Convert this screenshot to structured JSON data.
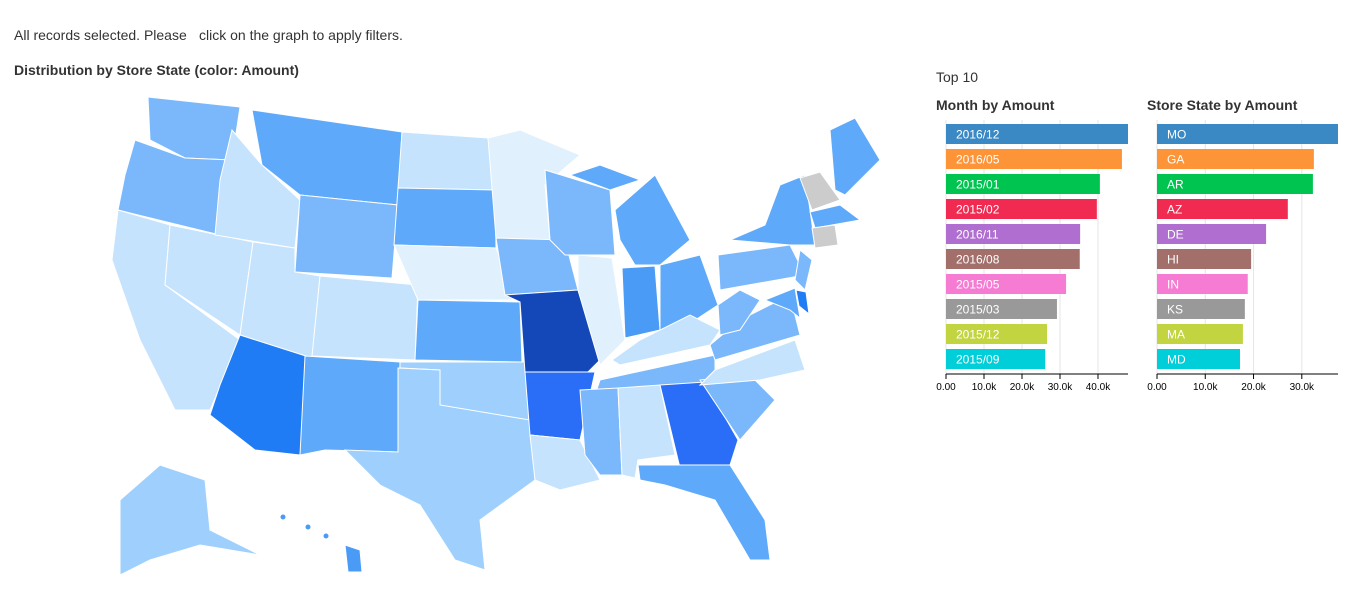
{
  "notice": {
    "lead": "All records selected. Please",
    "action": "click on the graph to apply filters."
  },
  "map_title": "Distribution by Store State (color: Amount)",
  "top_label": "Top 10",
  "chart_data": [
    {
      "type": "hbar",
      "title": "Month by Amount",
      "categories": [
        "2016/12",
        "2016/05",
        "2015/01",
        "2015/02",
        "2016/11",
        "2016/08",
        "2015/05",
        "2015/03",
        "2015/12",
        "2015/09"
      ],
      "values": [
        47900,
        46300,
        40500,
        39700,
        35300,
        35200,
        31600,
        29200,
        26600,
        26100
      ],
      "colors": [
        "#3a89c5",
        "#fd9438",
        "#00c450",
        "#f02a50",
        "#b06fd0",
        "#a26f6a",
        "#f67bd3",
        "#999999",
        "#c2d541",
        "#00cfd9"
      ],
      "xlim": [
        0,
        47900
      ],
      "xticks": [
        {
          "value": 0,
          "label": "0.00"
        },
        {
          "value": 10000,
          "label": "10.0k"
        },
        {
          "value": 20000,
          "label": "20.0k"
        },
        {
          "value": 30000,
          "label": "30.0k"
        },
        {
          "value": 40000,
          "label": "40.0k"
        }
      ],
      "grid": true
    },
    {
      "type": "hbar",
      "title": "Store State by Amount",
      "categories": [
        "MO",
        "GA",
        "AR",
        "AZ",
        "DE",
        "HI",
        "IN",
        "KS",
        "MA",
        "MD"
      ],
      "values": [
        37500,
        32500,
        32300,
        27100,
        22600,
        19500,
        18800,
        18200,
        17800,
        17200
      ],
      "colors": [
        "#3a89c5",
        "#fd9438",
        "#00c450",
        "#f02a50",
        "#b06fd0",
        "#a26f6a",
        "#f67bd3",
        "#999999",
        "#c2d541",
        "#00cfd9"
      ],
      "xlim": [
        0,
        37500
      ],
      "xticks": [
        {
          "value": 0,
          "label": "0.00"
        },
        {
          "value": 10000,
          "label": "10.0k"
        },
        {
          "value": 20000,
          "label": "20.0k"
        },
        {
          "value": 30000,
          "label": "30.0k"
        }
      ],
      "grid": true
    }
  ]
}
